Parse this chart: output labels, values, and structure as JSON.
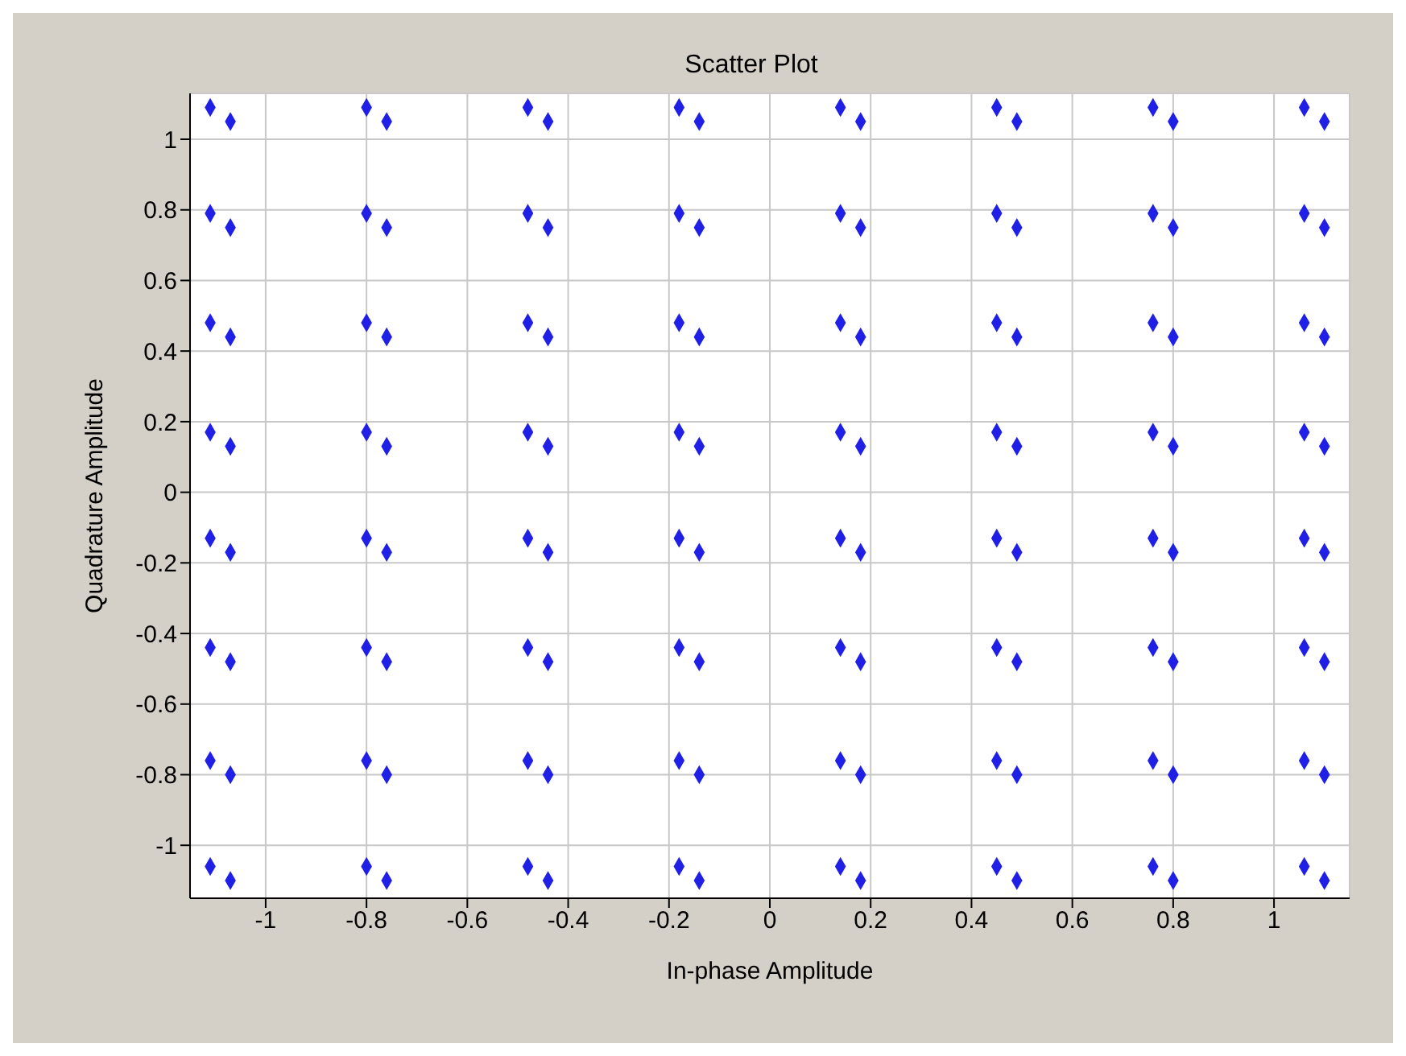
{
  "chart_data": {
    "type": "scatter",
    "title": "Scatter Plot",
    "xlabel": "In-phase Amplitude",
    "ylabel": "Quadrature Amplitude",
    "xlim": [
      -1.15,
      1.15
    ],
    "ylim": [
      -1.15,
      1.13
    ],
    "xticks": [
      -1,
      -0.8,
      -0.6,
      -0.4,
      -0.2,
      0,
      0.2,
      0.4,
      0.6,
      0.8,
      1
    ],
    "yticks": [
      -1,
      -0.8,
      -0.6,
      -0.4,
      -0.2,
      0,
      0.2,
      0.4,
      0.6,
      0.8,
      1
    ],
    "grid": true,
    "marker": "diamond",
    "series": [
      {
        "color": "#1f1fe6",
        "x": [
          -1.11,
          -1.07,
          -0.8,
          -0.76,
          -0.48,
          -0.44,
          -0.18,
          -0.14,
          0.14,
          0.18,
          0.45,
          0.49,
          0.76,
          0.8,
          1.06,
          1.1,
          -1.11,
          -1.07,
          -0.8,
          -0.76,
          -0.48,
          -0.44,
          -0.18,
          -0.14,
          0.14,
          0.18,
          0.45,
          0.49,
          0.76,
          0.8,
          1.06,
          1.1,
          -1.11,
          -1.07,
          -0.8,
          -0.76,
          -0.48,
          -0.44,
          -0.18,
          -0.14,
          0.14,
          0.18,
          0.45,
          0.49,
          0.76,
          0.8,
          1.06,
          1.1,
          -1.11,
          -1.07,
          -0.8,
          -0.76,
          -0.48,
          -0.44,
          -0.18,
          -0.14,
          0.14,
          0.18,
          0.45,
          0.49,
          0.76,
          0.8,
          1.06,
          1.1,
          -1.11,
          -1.07,
          -0.8,
          -0.76,
          -0.48,
          -0.44,
          -0.18,
          -0.14,
          0.14,
          0.18,
          0.45,
          0.49,
          0.76,
          0.8,
          1.06,
          1.1,
          -1.11,
          -1.07,
          -0.8,
          -0.76,
          -0.48,
          -0.44,
          -0.18,
          -0.14,
          0.14,
          0.18,
          0.45,
          0.49,
          0.76,
          0.8,
          1.06,
          1.1,
          -1.11,
          -1.07,
          -0.8,
          -0.76,
          -0.48,
          -0.44,
          -0.18,
          -0.14,
          0.14,
          0.18,
          0.45,
          0.49,
          0.76,
          0.8,
          1.06,
          1.1,
          -1.11,
          -1.07,
          -0.8,
          -0.76,
          -0.48,
          -0.44,
          -0.18,
          -0.14,
          0.14,
          0.18,
          0.45,
          0.49,
          0.76,
          0.8,
          1.06,
          1.1
        ],
        "values": [
          1.09,
          1.05,
          1.09,
          1.05,
          1.09,
          1.05,
          1.09,
          1.05,
          1.09,
          1.05,
          1.09,
          1.05,
          1.09,
          1.05,
          1.09,
          1.05,
          0.79,
          0.75,
          0.79,
          0.75,
          0.79,
          0.75,
          0.79,
          0.75,
          0.79,
          0.75,
          0.79,
          0.75,
          0.79,
          0.75,
          0.79,
          0.75,
          0.48,
          0.44,
          0.48,
          0.44,
          0.48,
          0.44,
          0.48,
          0.44,
          0.48,
          0.44,
          0.48,
          0.44,
          0.48,
          0.44,
          0.48,
          0.44,
          0.17,
          0.13,
          0.17,
          0.13,
          0.17,
          0.13,
          0.17,
          0.13,
          0.17,
          0.13,
          0.17,
          0.13,
          0.17,
          0.13,
          0.17,
          0.13,
          -0.13,
          -0.17,
          -0.13,
          -0.17,
          -0.13,
          -0.17,
          -0.13,
          -0.17,
          -0.13,
          -0.17,
          -0.13,
          -0.17,
          -0.13,
          -0.17,
          -0.13,
          -0.17,
          -0.44,
          -0.48,
          -0.44,
          -0.48,
          -0.44,
          -0.48,
          -0.44,
          -0.48,
          -0.44,
          -0.48,
          -0.44,
          -0.48,
          -0.44,
          -0.48,
          -0.44,
          -0.48,
          -0.76,
          -0.8,
          -0.76,
          -0.8,
          -0.76,
          -0.8,
          -0.76,
          -0.8,
          -0.76,
          -0.8,
          -0.76,
          -0.8,
          -0.76,
          -0.8,
          -0.76,
          -0.8,
          -1.06,
          -1.1,
          -1.06,
          -1.1,
          -1.06,
          -1.1,
          -1.06,
          -1.1,
          -1.06,
          -1.1,
          -1.06,
          -1.1,
          -1.06,
          -1.1,
          -1.06,
          -1.1
        ]
      }
    ]
  }
}
